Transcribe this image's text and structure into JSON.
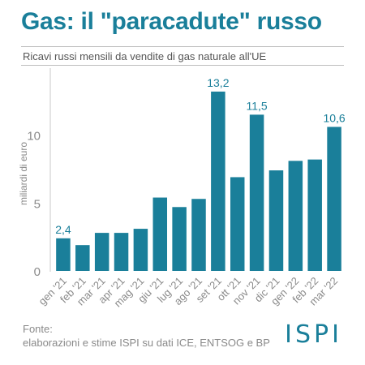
{
  "title": "Gas: il \"paracadute\" russo",
  "subtitle": "Ricavi russi mensili da vendite di gas naturale all'UE",
  "source": {
    "label": "Fonte:",
    "text": "elaborazioni e stime ISPI su dati ICE, ENTSOG e BP"
  },
  "logo": "ISPI",
  "colors": {
    "accent": "#1a7f9a",
    "text": "#555555",
    "muted": "#8a8a8a"
  },
  "chart_data": {
    "type": "bar",
    "ylabel": "miliardi di euro",
    "ylim": [
      0,
      15
    ],
    "yticks": [
      0,
      5,
      10
    ],
    "grid": false,
    "categories": [
      "gen '21",
      "feb '21",
      "mar '21",
      "apr '21",
      "mag '21",
      "giu '21",
      "lug '21",
      "ago '21",
      "set '21",
      "ott '21",
      "nov '21",
      "dic '21",
      "gen '22",
      "feb '22",
      "mar '22"
    ],
    "values": [
      2.4,
      1.9,
      2.8,
      2.8,
      3.1,
      5.4,
      4.7,
      5.3,
      13.2,
      6.9,
      11.5,
      7.4,
      8.1,
      8.2,
      10.6
    ],
    "data_labels": [
      {
        "index": 0,
        "text": "2,4"
      },
      {
        "index": 8,
        "text": "13,2"
      },
      {
        "index": 10,
        "text": "11,5"
      },
      {
        "index": 14,
        "text": "10,6"
      }
    ]
  }
}
